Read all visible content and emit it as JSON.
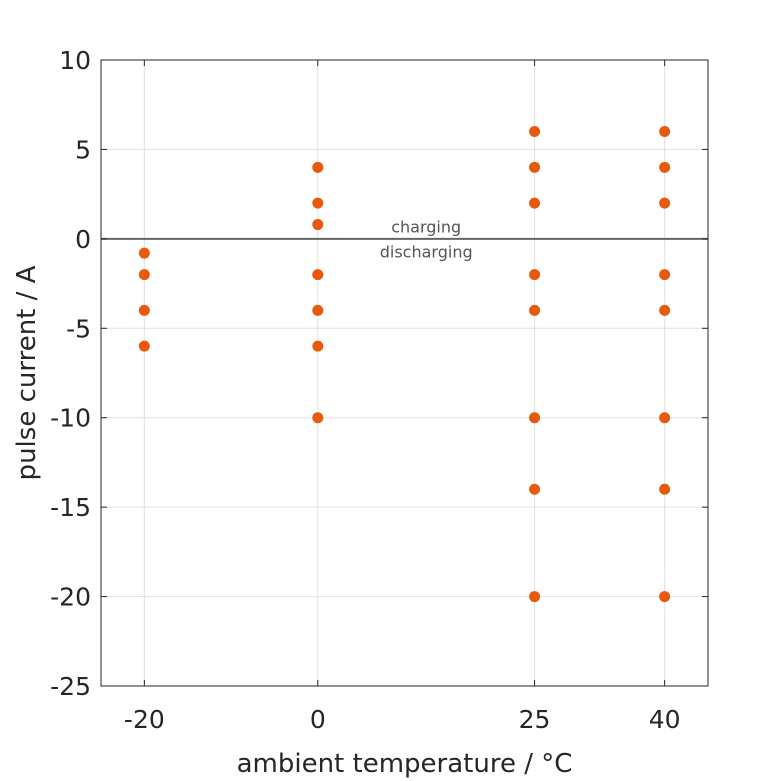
{
  "chart_data": {
    "type": "scatter",
    "title": "",
    "xlabel": "ambient temperature / °C",
    "ylabel": "pulse current / A",
    "x_ticks": [
      -20,
      0,
      25,
      40
    ],
    "x_tick_labels": [
      "-20",
      "0",
      "25",
      "40"
    ],
    "y_ticks": [
      10,
      5,
      0,
      -5,
      -10,
      -15,
      -20,
      -25
    ],
    "y_tick_labels": [
      "10",
      "5",
      "0",
      "-5",
      "-10",
      "-15",
      "-20",
      "-25"
    ],
    "ylim": [
      -25,
      10
    ],
    "grid": true,
    "reference_line": {
      "y": 0,
      "color": "#666666"
    },
    "annotations": [
      {
        "text": "charging",
        "x": 12.5,
        "y": 0.7
      },
      {
        "text": "discharging",
        "x": 12.5,
        "y": -0.7
      }
    ],
    "series": [
      {
        "color": "#E8590C",
        "points": [
          {
            "x": -20,
            "y": -0.8
          },
          {
            "x": -20,
            "y": -2
          },
          {
            "x": -20,
            "y": -4
          },
          {
            "x": -20,
            "y": -6
          },
          {
            "x": 0,
            "y": 4
          },
          {
            "x": 0,
            "y": 2
          },
          {
            "x": 0,
            "y": 0.8
          },
          {
            "x": 0,
            "y": -2
          },
          {
            "x": 0,
            "y": -4
          },
          {
            "x": 0,
            "y": -6
          },
          {
            "x": 0,
            "y": -10
          },
          {
            "x": 25,
            "y": 6
          },
          {
            "x": 25,
            "y": 4
          },
          {
            "x": 25,
            "y": 2
          },
          {
            "x": 25,
            "y": -2
          },
          {
            "x": 25,
            "y": -4
          },
          {
            "x": 25,
            "y": -10
          },
          {
            "x": 25,
            "y": -14
          },
          {
            "x": 25,
            "y": -20
          },
          {
            "x": 40,
            "y": 6
          },
          {
            "x": 40,
            "y": 4
          },
          {
            "x": 40,
            "y": 2
          },
          {
            "x": 40,
            "y": -2
          },
          {
            "x": 40,
            "y": -4
          },
          {
            "x": 40,
            "y": -10
          },
          {
            "x": 40,
            "y": -14
          },
          {
            "x": 40,
            "y": -20
          }
        ]
      }
    ]
  }
}
